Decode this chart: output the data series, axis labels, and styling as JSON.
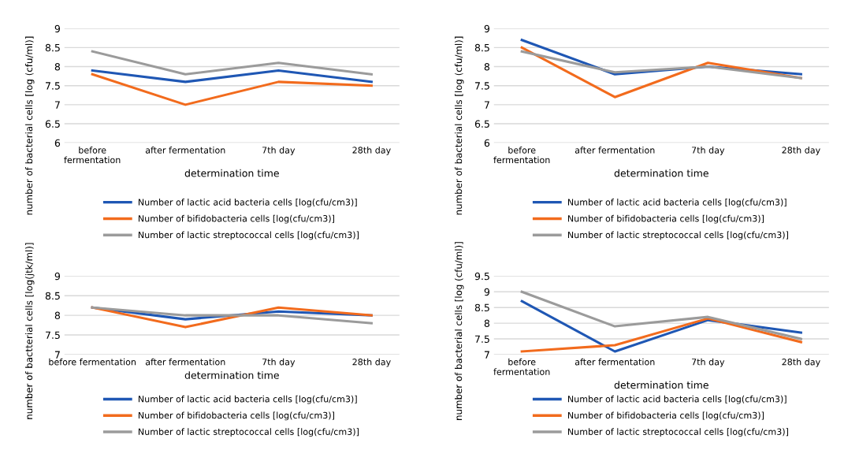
{
  "chart_data": [
    {
      "type": "line",
      "categories": [
        "before\nfermentation",
        "after fermentation",
        "7th day",
        "28th day"
      ],
      "xlabel": "determination time",
      "ylabel": "number of bacterial cells [log (cfu/ml)]",
      "ylim": [
        6,
        9
      ],
      "yticks": [
        6,
        6.5,
        7,
        7.5,
        8,
        8.5,
        9
      ],
      "grid": "y",
      "legend": "bottom",
      "marker": "none",
      "line_style": "solid",
      "series": [
        {
          "name": "Number of lactic acid bacteria cells [log(cfu/cm3)]",
          "color": "#1f57b4",
          "values": [
            7.9,
            7.6,
            7.9,
            7.6
          ]
        },
        {
          "name": "Number of bifidobacteria cells [log(cfu/cm3)]",
          "color": "#f26b1d",
          "values": [
            7.8,
            7.0,
            7.6,
            7.5
          ]
        },
        {
          "name": "Number of lactic streptococcal cells [log(cfu/cm3)]",
          "color": "#9b9b9b",
          "values": [
            8.4,
            7.8,
            8.1,
            7.8
          ]
        }
      ]
    },
    {
      "type": "line",
      "categories": [
        "before\nfermentation",
        "after fermentation",
        "7th day",
        "28th day"
      ],
      "xlabel": "determination time",
      "ylabel": "number of bacterial cells [log (cfu/ml)]",
      "ylim": [
        6,
        9
      ],
      "yticks": [
        6,
        6.5,
        7,
        7.5,
        8,
        8.5,
        9
      ],
      "grid": "y",
      "legend": "bottom",
      "marker": "none",
      "line_style": "solid",
      "series": [
        {
          "name": "Number of lactic acid bacteria cells [log(cfu/cm3)]",
          "color": "#1f57b4",
          "values": [
            8.7,
            7.8,
            8.0,
            7.8
          ]
        },
        {
          "name": "Number of bifidobacteria cells [log(cfu/cm3)]",
          "color": "#f26b1d",
          "values": [
            8.5,
            7.2,
            8.1,
            7.7
          ]
        },
        {
          "name": "Number of lactic streptococcal cells [log(cfu/cm3)]",
          "color": "#9b9b9b",
          "values": [
            8.4,
            7.85,
            8.0,
            7.7
          ]
        }
      ]
    },
    {
      "type": "line",
      "categories": [
        "before fermentation",
        "after fermentation",
        "7th day",
        "28th day"
      ],
      "xlabel": "determination time",
      "ylabel": "number of bactterial cells [log(jtk/ml)]",
      "ylim": [
        7,
        9
      ],
      "yticks": [
        7,
        7.5,
        8,
        8.5,
        9
      ],
      "grid": "y",
      "legend": "bottom",
      "marker": "none",
      "line_style": "solid",
      "series": [
        {
          "name": "Number of lactic acid bacteria cells [log(cfu/cm3)]",
          "color": "#1f57b4",
          "values": [
            8.2,
            7.9,
            8.1,
            8.0
          ]
        },
        {
          "name": "Number of bifidobacteria cells [log(cfu/cm3)]",
          "color": "#f26b1d",
          "values": [
            8.2,
            7.7,
            8.2,
            8.0
          ]
        },
        {
          "name": "Number of lactic streptococcal cells [log(cfu/cm3)]",
          "color": "#9b9b9b",
          "values": [
            8.2,
            8.0,
            8.0,
            7.8
          ]
        }
      ]
    },
    {
      "type": "line",
      "categories": [
        "before\nfermentation",
        "after fermentation",
        "7th day",
        "28th day"
      ],
      "xlabel": "determination time",
      "ylabel": "number of bacterial cells [log (cfu/ml)]",
      "ylim": [
        7,
        9.5
      ],
      "yticks": [
        7,
        7.5,
        8,
        8.5,
        9,
        9.5
      ],
      "grid": "y",
      "legend": "bottom",
      "marker": "none",
      "line_style": "solid",
      "series": [
        {
          "name": "Number of lactic acid bacteria cells [log(cfu/cm3)]",
          "color": "#1f57b4",
          "values": [
            8.7,
            7.1,
            8.1,
            7.7
          ]
        },
        {
          "name": "Number of bifidobacteria cells [log(cfu/cm3)]",
          "color": "#f26b1d",
          "values": [
            7.1,
            7.3,
            8.15,
            7.4
          ]
        },
        {
          "name": "Number of lactic streptococcal cells [log(cfu/cm3)]",
          "color": "#9b9b9b",
          "values": [
            9.0,
            7.9,
            8.2,
            7.5
          ]
        }
      ]
    }
  ]
}
